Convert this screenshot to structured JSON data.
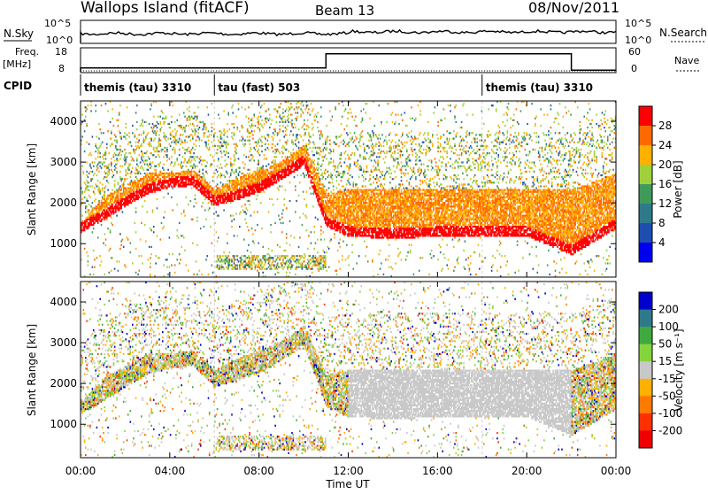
{
  "header": {
    "station": "Wallops Island (fitACF)",
    "beam": "Beam 13",
    "date": "08/Nov/2011"
  },
  "strips": {
    "nsky_label": "N.Sky",
    "nsky_ticks": [
      "10^5",
      "10^0"
    ],
    "nsearch_label": "N.Search",
    "nsearch_ticks": [
      "10^5",
      "10^0"
    ],
    "freq_label": "Freq.",
    "freq_unit": "[MHz]",
    "freq_ticks": [
      "18",
      "8"
    ],
    "nave_label": "Nave",
    "nave_ticks": [
      "60",
      "0"
    ],
    "cpid_label": "CPID"
  },
  "cpid_segments": [
    {
      "label": "themis (tau) 3310",
      "start_hour": 0,
      "end_hour": 6
    },
    {
      "label": "tau (fast) 503",
      "start_hour": 6,
      "end_hour": 18
    },
    {
      "label": "themis (tau) 3310",
      "start_hour": 18,
      "end_hour": 24
    }
  ],
  "power_panel": {
    "ylabel": "Slant Range [km]",
    "yticks": [
      "1000",
      "2000",
      "3000",
      "4000"
    ],
    "colorbar_label": "Power [dB]",
    "colorbar_ticks": [
      "4",
      "8",
      "12",
      "16",
      "20",
      "24",
      "28"
    ],
    "colors": [
      "#0000ee",
      "#1e4fb0",
      "#2e7a8a",
      "#3f9b5a",
      "#9fd13a",
      "#ffb000",
      "#ff6a00",
      "#ff0000"
    ]
  },
  "velocity_panel": {
    "ylabel": "Slant Range [km]",
    "yticks": [
      "1000",
      "2000",
      "3000",
      "4000"
    ],
    "colorbar_label": "Velocity [m s⁻¹]",
    "colorbar_ticks": [
      "200",
      "100",
      "50",
      "15",
      "-15",
      "-50",
      "-100",
      "-200"
    ],
    "colors": [
      "#0000cc",
      "#2e7a8a",
      "#3faa3f",
      "#86d43c",
      "#c8c8c8",
      "#ffb000",
      "#ff7a00",
      "#ff3000",
      "#ee0000"
    ]
  },
  "time_axis": {
    "label": "Time UT",
    "ticks": [
      "00:00",
      "04:00",
      "08:00",
      "12:00",
      "16:00",
      "20:00",
      "00:00"
    ]
  },
  "chart_data": {
    "type": "heatmap",
    "title": "Wallops Island (fitACF) Beam 13 08/Nov/2011",
    "xlabel": "Time UT",
    "ylabel": "Slant Range [km]",
    "xlim_hours": [
      0,
      24
    ],
    "ylim_km": [
      180,
      4500
    ],
    "frequency_mhz_steps": [
      {
        "start_hour": 0,
        "end_hour": 11,
        "value": 10
      },
      {
        "start_hour": 11,
        "end_hour": 22,
        "value": 16
      },
      {
        "start_hour": 22,
        "end_hour": 24,
        "value": 9
      }
    ],
    "power_band": {
      "hours": [
        0,
        1,
        2,
        3,
        4,
        5,
        6,
        7,
        8,
        9,
        10,
        11,
        12,
        14,
        16,
        18,
        20,
        22,
        24
      ],
      "lower_km": [
        1250,
        1550,
        1900,
        2200,
        2350,
        2400,
        1900,
        2050,
        2250,
        2550,
        2900,
        1400,
        1150,
        1100,
        1150,
        1150,
        1150,
        700,
        1350
      ],
      "upper_km": [
        1500,
        2100,
        2400,
        2700,
        2700,
        2800,
        2300,
        2600,
        2800,
        3000,
        3400,
        2200,
        2300,
        2300,
        2300,
        2300,
        2300,
        2300,
        2700
      ]
    },
    "ground_scatter_hours": [
      12,
      22
    ],
    "short_range_patch": {
      "start_hour": 6,
      "end_hour": 11,
      "range_km": [
        350,
        700
      ]
    }
  }
}
